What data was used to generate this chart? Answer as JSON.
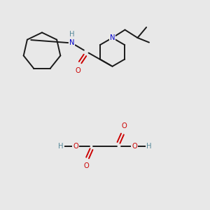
{
  "bg_color": "#e8e8e8",
  "line_color": "#1a1a1a",
  "N_color": "#0000cc",
  "O_color": "#cc0000",
  "NH_color": "#558899",
  "H_color": "#558899",
  "figsize": [
    3.0,
    3.0
  ],
  "dpi": 100,
  "lw": 1.4,
  "fs": 7.2,
  "xlim": [
    0,
    10
  ],
  "ylim": [
    0,
    10
  ]
}
